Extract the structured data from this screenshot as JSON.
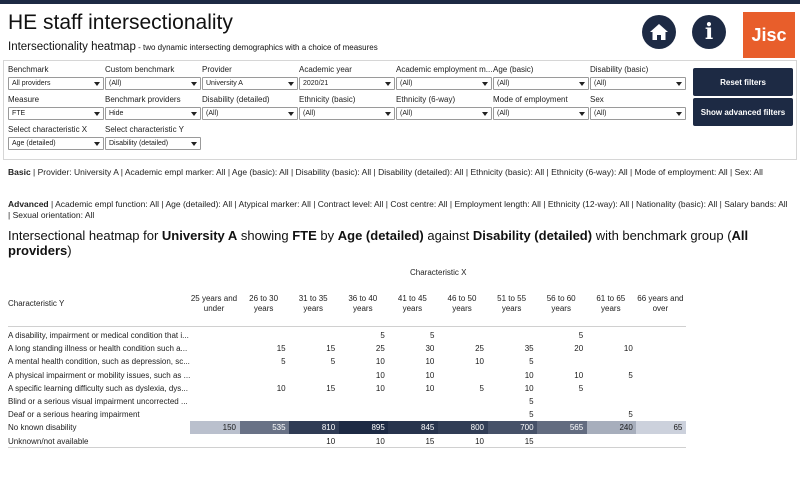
{
  "header": {
    "title": "HE staff intersectionality",
    "subtitle_main": "Intersectionality heatmap",
    "subtitle_desc": " - two dynamic intersecting demographics with a choice of measures",
    "logo_text": "Jisc",
    "info_glyph": "i",
    "accent_color": "#1d2a44",
    "logo_color": "#e85e2b"
  },
  "filters": [
    {
      "label": "Benchmark",
      "value": "All providers"
    },
    {
      "label": "Custom benchmark",
      "value": "(All)"
    },
    {
      "label": "Provider",
      "value": "University A"
    },
    {
      "label": "Academic year",
      "value": "2020/21"
    },
    {
      "label": "Academic employment m...",
      "value": "(All)"
    },
    {
      "label": "Age (basic)",
      "value": "(All)"
    },
    {
      "label": "Disability (basic)",
      "value": "(All)"
    },
    {
      "label": "Measure",
      "value": "FTE"
    },
    {
      "label": "Benchmark providers",
      "value": "Hide"
    },
    {
      "label": "Disability (detailed)",
      "value": "(All)"
    },
    {
      "label": "Ethnicity (basic)",
      "value": "(All)"
    },
    {
      "label": "Ethnicity (6-way)",
      "value": "(All)"
    },
    {
      "label": "Mode of employment",
      "value": "(All)"
    },
    {
      "label": "Sex",
      "value": "(All)"
    },
    {
      "label": "Select characteristic X",
      "value": "Age (detailed)"
    },
    {
      "label": "Select characteristic Y",
      "value": "Disability (detailed)"
    }
  ],
  "buttons": {
    "reset": "Reset filters",
    "advanced": "Show advanced filters"
  },
  "summary": {
    "basic_label": "Basic",
    "basic_text": "  |   Provider: University A   |   Academic empl marker: All   |   Age (basic): All   |   Disability (basic): All   |   Disability (detailed): All   |   Ethnicity (basic): All   |   Ethnicity (6-way): All   |   Mode of employment: All   |   Sex: All",
    "advanced_label": "Advanced",
    "advanced_text": "  |   Academic empl function: All   |   Age (detailed): All   |   Atypical marker: All   |   Contract level: All   |   Cost centre: All   |   Employment length: All   |   Ethnicity (12-way): All   |   Nationality (basic): All   |   Salary bands: All   |   Sexual orientation: All"
  },
  "heading": {
    "p1": "Intersectional heatmap for ",
    "provider": "University A",
    "p2": " showing ",
    "measure": "FTE",
    "p3": " by ",
    "x": "Age (detailed)",
    "p4": " against ",
    "y": "Disability (detailed)",
    "p5": " with benchmark group (",
    "bench": "All providers",
    "p6": ")"
  },
  "chart_data": {
    "type": "heatmap",
    "xlabel": "Characteristic X",
    "ylabel": "Characteristic Y",
    "columns": [
      "25 years and under",
      "26 to 30 years",
      "31 to 35 years",
      "36 to 40 years",
      "41 to 45 years",
      "46 to 50 years",
      "51 to 55 years",
      "56 to 60 years",
      "61 to 65 years",
      "66 years and over"
    ],
    "rows": [
      {
        "label": "A disability, impairment or medical condition that i...",
        "values": [
          null,
          null,
          null,
          5,
          5,
          null,
          null,
          5,
          null,
          null
        ]
      },
      {
        "label": "A long standing illness or health condition such a...",
        "values": [
          null,
          15,
          15,
          25,
          30,
          25,
          35,
          20,
          10,
          null
        ]
      },
      {
        "label": "A mental health condition, such as depression, sc...",
        "values": [
          null,
          5,
          5,
          10,
          10,
          10,
          5,
          null,
          null,
          null
        ]
      },
      {
        "label": "A physical impairment or mobility issues, such as ...",
        "values": [
          null,
          null,
          null,
          10,
          10,
          null,
          10,
          10,
          5,
          null
        ]
      },
      {
        "label": "A specific learning difficulty such as dyslexia, dys...",
        "values": [
          null,
          10,
          15,
          10,
          10,
          5,
          10,
          5,
          null,
          null
        ]
      },
      {
        "label": "Blind or a serious visual impairment uncorrected ...",
        "values": [
          null,
          null,
          null,
          null,
          null,
          null,
          5,
          null,
          null,
          null
        ]
      },
      {
        "label": "Deaf or a serious hearing impairment",
        "values": [
          null,
          null,
          null,
          null,
          null,
          null,
          5,
          null,
          5,
          null
        ]
      },
      {
        "label": "No known disability",
        "values": [
          150,
          535,
          810,
          895,
          845,
          800,
          700,
          565,
          240,
          65
        ]
      },
      {
        "label": "Unknown/not available",
        "values": [
          null,
          null,
          10,
          10,
          15,
          10,
          15,
          null,
          null,
          null
        ]
      }
    ],
    "max_value": 895,
    "color_low": "#ffffff",
    "color_high": "#1d2a44"
  }
}
